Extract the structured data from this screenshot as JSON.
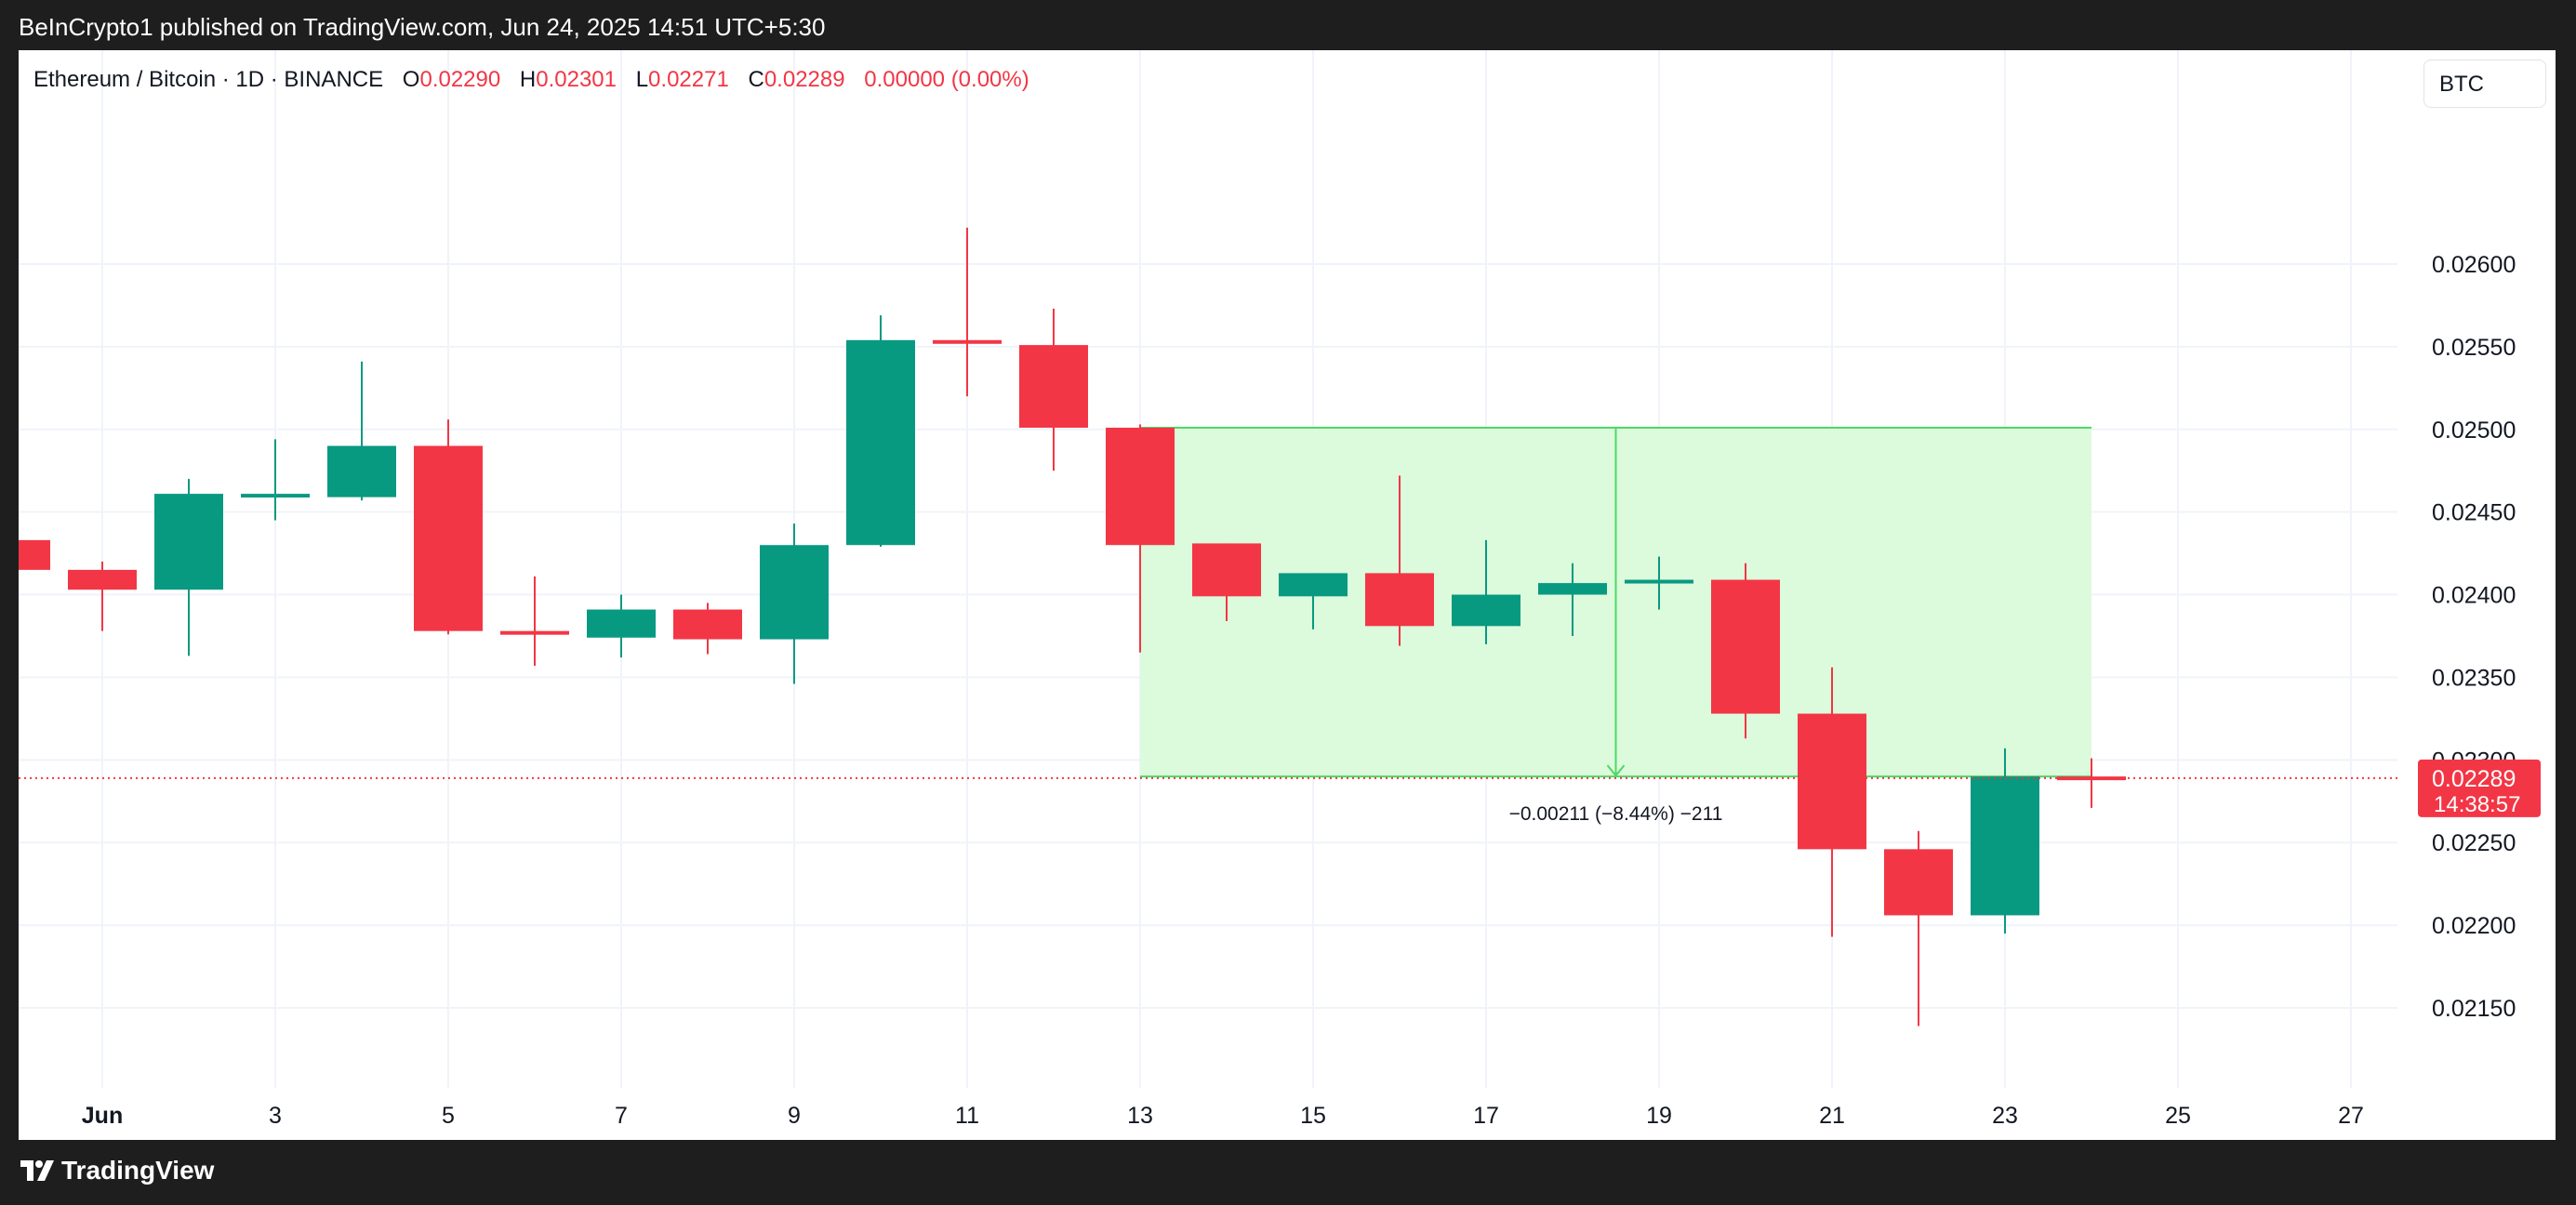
{
  "header": {
    "published_text": "BeInCrypto1 published on TradingView.com, Jun 24, 2025 14:51 UTC+5:30"
  },
  "legend": {
    "symbol": "Ethereum / Bitcoin · 1D · BINANCE",
    "open_label": "O",
    "open_value": "0.02290",
    "high_label": "H",
    "high_value": "0.02301",
    "low_label": "L",
    "low_value": "0.02271",
    "close_label": "C",
    "close_value": "0.02289",
    "change_value": "0.00000 (0.00%)"
  },
  "currency_button": {
    "label": "BTC"
  },
  "price_badge": {
    "price": "0.02289",
    "countdown": "14:38:57"
  },
  "measurement": {
    "label": "−0.00211 (−8.44%) −211"
  },
  "footer": {
    "brand": "TradingView"
  },
  "colors": {
    "up": "#089981",
    "down": "#f23645",
    "range_fill": "#dcfadc",
    "range_stroke": "#4cd964"
  },
  "chart_data": {
    "type": "candlestick",
    "ylim": [
      0.021,
      0.0263
    ],
    "y_ticks": [
      "0.02150",
      "0.02200",
      "0.02250",
      "0.02300",
      "0.02350",
      "0.02400",
      "0.02450",
      "0.02500",
      "0.02550",
      "0.02600"
    ],
    "x_tick_labels": [
      {
        "day": 1,
        "label": "Jun"
      },
      {
        "day": 3,
        "label": "3"
      },
      {
        "day": 5,
        "label": "5"
      },
      {
        "day": 7,
        "label": "7"
      },
      {
        "day": 9,
        "label": "9"
      },
      {
        "day": 11,
        "label": "11"
      },
      {
        "day": 13,
        "label": "13"
      },
      {
        "day": 15,
        "label": "15"
      },
      {
        "day": 17,
        "label": "17"
      },
      {
        "day": 19,
        "label": "19"
      },
      {
        "day": 21,
        "label": "21"
      },
      {
        "day": 23,
        "label": "23"
      },
      {
        "day": 25,
        "label": "25"
      },
      {
        "day": 27,
        "label": "27"
      }
    ],
    "candles": [
      {
        "day": 0,
        "open": 0.02433,
        "high": 0.02433,
        "low": 0.02415,
        "close": 0.02415
      },
      {
        "day": 1,
        "open": 0.02415,
        "high": 0.0242,
        "low": 0.02378,
        "close": 0.02403
      },
      {
        "day": 2,
        "open": 0.02403,
        "high": 0.0247,
        "low": 0.02363,
        "close": 0.02461
      },
      {
        "day": 3,
        "open": 0.02461,
        "high": 0.02494,
        "low": 0.02445,
        "close": 0.02461
      },
      {
        "day": 4,
        "open": 0.02459,
        "high": 0.02541,
        "low": 0.02457,
        "close": 0.0249
      },
      {
        "day": 5,
        "open": 0.0249,
        "high": 0.02506,
        "low": 0.02376,
        "close": 0.02378
      },
      {
        "day": 6,
        "open": 0.02378,
        "high": 0.02411,
        "low": 0.02357,
        "close": 0.02376
      },
      {
        "day": 7,
        "open": 0.02374,
        "high": 0.024,
        "low": 0.02362,
        "close": 0.02391
      },
      {
        "day": 8,
        "open": 0.02391,
        "high": 0.02395,
        "low": 0.02364,
        "close": 0.02373
      },
      {
        "day": 9,
        "open": 0.02373,
        "high": 0.02443,
        "low": 0.02346,
        "close": 0.0243
      },
      {
        "day": 10,
        "open": 0.0243,
        "high": 0.02569,
        "low": 0.02429,
        "close": 0.02554
      },
      {
        "day": 11,
        "open": 0.02554,
        "high": 0.02622,
        "low": 0.0252,
        "close": 0.02552
      },
      {
        "day": 12,
        "open": 0.02551,
        "high": 0.02573,
        "low": 0.02475,
        "close": 0.02501
      },
      {
        "day": 13,
        "open": 0.02501,
        "high": 0.02503,
        "low": 0.02365,
        "close": 0.0243
      },
      {
        "day": 14,
        "open": 0.02431,
        "high": 0.02431,
        "low": 0.02384,
        "close": 0.02399
      },
      {
        "day": 15,
        "open": 0.02399,
        "high": 0.02413,
        "low": 0.02379,
        "close": 0.02413
      },
      {
        "day": 16,
        "open": 0.02413,
        "high": 0.02472,
        "low": 0.02369,
        "close": 0.02381
      },
      {
        "day": 17,
        "open": 0.02381,
        "high": 0.02433,
        "low": 0.0237,
        "close": 0.024
      },
      {
        "day": 18,
        "open": 0.024,
        "high": 0.02419,
        "low": 0.02375,
        "close": 0.02407
      },
      {
        "day": 19,
        "open": 0.02408,
        "high": 0.02423,
        "low": 0.02391,
        "close": 0.02409
      },
      {
        "day": 20,
        "open": 0.02409,
        "high": 0.02419,
        "low": 0.02313,
        "close": 0.02328
      },
      {
        "day": 21,
        "open": 0.02328,
        "high": 0.02356,
        "low": 0.02193,
        "close": 0.02246
      },
      {
        "day": 22,
        "open": 0.02246,
        "high": 0.02257,
        "low": 0.02139,
        "close": 0.02206
      },
      {
        "day": 23,
        "open": 0.02206,
        "high": 0.02307,
        "low": 0.02195,
        "close": 0.0229
      },
      {
        "day": 24,
        "open": 0.0229,
        "high": 0.02301,
        "low": 0.02271,
        "close": 0.02289
      }
    ],
    "range_box": {
      "x_start_day": 13,
      "x_end_day": 24,
      "y_top": 0.02501,
      "y_bottom": 0.0229
    },
    "arrow_day": 18.5,
    "current_price": 0.02289
  }
}
